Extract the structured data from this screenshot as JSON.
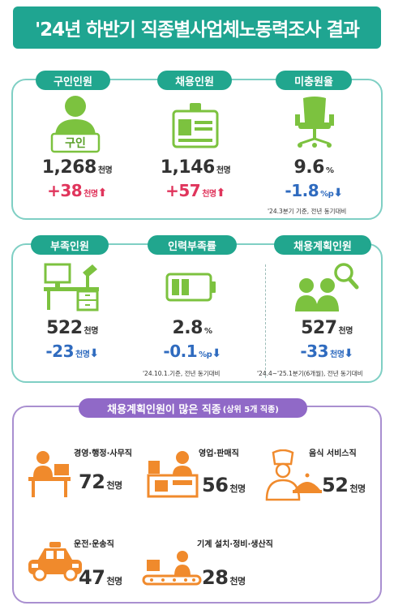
{
  "title": "'24년 하반기 직종별사업체노동력조사 결과",
  "colors": {
    "teal": "#21a68e",
    "green": "#7cc23f",
    "orange": "#f08a2c",
    "purple": "#9069c7",
    "red": "#e0355c",
    "blue": "#2f6bbf"
  },
  "row1": [
    {
      "label": "구인인원",
      "icon": "job-seeker-sign-icon",
      "sign_text": "구인",
      "value": "1,268",
      "unit": "천명",
      "change": "+38",
      "change_unit": "천명",
      "direction": "up"
    },
    {
      "label": "채용인원",
      "icon": "id-badge-icon",
      "value": "1,146",
      "unit": "천명",
      "change": "+57",
      "change_unit": "천명",
      "direction": "up"
    },
    {
      "label": "미충원율",
      "icon": "empty-chair-icon",
      "value": "9.6",
      "unit": "%",
      "change": "-1.8",
      "change_unit": "%p",
      "direction": "down",
      "note": "'24.3분기 기준, 전년 동기대비"
    }
  ],
  "row2": [
    {
      "label": "부족인원",
      "icon": "empty-desk-icon",
      "value": "522",
      "unit": "천명",
      "change": "-23",
      "change_unit": "천명",
      "direction": "down"
    },
    {
      "label": "인력부족률",
      "icon": "battery-icon",
      "value": "2.8",
      "unit": "%",
      "change": "-0.1",
      "change_unit": "%p",
      "direction": "down",
      "note": "'24.10.1.기준, 전년 동기대비"
    },
    {
      "label": "채용계획인원",
      "icon": "people-search-icon",
      "value": "527",
      "unit": "천명",
      "change": "-33",
      "change_unit": "천명",
      "direction": "down",
      "note": "'24.4~'25.1분기(6개월), 전년 동기대비"
    }
  ],
  "top_occupations": {
    "header": "채용계획인원이 많은 직종",
    "header_sub": "(상위 5개 직종)",
    "items": [
      {
        "name": "경영·행정·사무직",
        "value": "72",
        "unit": "천명",
        "icon": "office-worker-icon"
      },
      {
        "name": "영업·판매직",
        "value": "56",
        "unit": "천명",
        "icon": "sales-clerk-icon"
      },
      {
        "name": "음식 서비스직",
        "value": "52",
        "unit": "천명",
        "icon": "chef-icon"
      },
      {
        "name": "운전·운송직",
        "value": "47",
        "unit": "천명",
        "icon": "taxi-icon"
      },
      {
        "name": "기계 설치·정비·생산직",
        "value": "28",
        "unit": "천명",
        "icon": "factory-worker-icon"
      }
    ]
  }
}
